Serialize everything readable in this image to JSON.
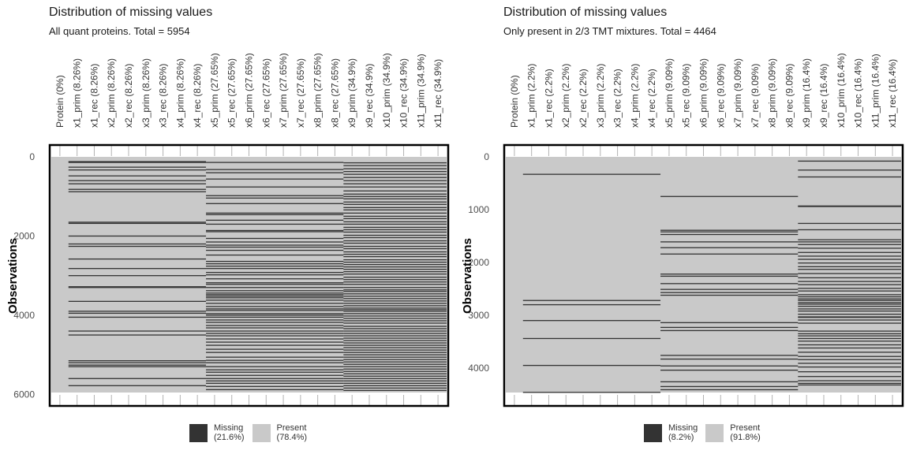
{
  "colors": {
    "missing": "#333333",
    "present": "#c9c9c9",
    "tick_text": "#4d4d4d",
    "frame": "#000000"
  },
  "legend": {
    "missing_label": "Missing",
    "present_label": "Present"
  },
  "chart_data": [
    {
      "type": "heatmap",
      "title": "Distribution of missing values",
      "subtitle": "All quant proteins. Total = 5954",
      "ylabel": "Observations",
      "ylim": [
        0,
        5954
      ],
      "yticks": [
        0,
        2000,
        4000,
        6000
      ],
      "columns": [
        "Protein (0%)",
        "x1_prim (8.26%)",
        "x1_rec (8.26%)",
        "x2_prim (8.26%)",
        "x2_rec (8.26%)",
        "x3_prim (8.26%)",
        "x3_rec (8.26%)",
        "x4_prim (8.26%)",
        "x4_rec (8.26%)",
        "x5_prim (27.65%)",
        "x5_rec (27.65%)",
        "x6_prim (27.65%)",
        "x6_rec (27.65%)",
        "x7_prim (27.65%)",
        "x7_rec (27.65%)",
        "x8_prim (27.65%)",
        "x8_rec (27.65%)",
        "x9_prim (34.9%)",
        "x9_rec (34.9%)",
        "x10_prim (34.9%)",
        "x10_rec (34.9%)",
        "x11_prim (34.9%)",
        "x11_rec (34.9%)"
      ],
      "missing_pct": [
        0,
        8.26,
        8.26,
        8.26,
        8.26,
        8.26,
        8.26,
        8.26,
        8.26,
        27.65,
        27.65,
        27.65,
        27.65,
        27.65,
        27.65,
        27.65,
        27.65,
        34.9,
        34.9,
        34.9,
        34.9,
        34.9,
        34.9
      ],
      "legend_missing_pct": "(21.6%)",
      "legend_present_pct": "(78.4%)",
      "groups": [
        {
          "columns": [
            1,
            8
          ],
          "missing_rows": [
            120,
            140,
            260,
            330,
            480,
            600,
            680,
            820,
            880,
            1650,
            1680,
            2000,
            2200,
            2260,
            2580,
            2820,
            3000,
            3280,
            3300,
            3650,
            3900,
            3950,
            4050,
            4400,
            4500,
            5150,
            5200,
            5260,
            5300,
            5600,
            5780
          ]
        },
        {
          "columns": [
            9,
            16
          ],
          "missing_rows": [
            140,
            320,
            400,
            560,
            760,
            980,
            1040,
            1180,
            1420,
            1460,
            1600,
            1700,
            1860,
            1890,
            2060,
            2150,
            2230,
            2280,
            2360,
            2480,
            2640,
            2700,
            2760,
            2820,
            2920,
            2980,
            3080,
            3180,
            3220,
            3300,
            3380,
            3440,
            3480,
            3520,
            3560,
            3620,
            3700,
            3780,
            3840,
            3880,
            3960,
            4000,
            4050,
            4120,
            4180,
            4260,
            4320,
            4400,
            4460,
            4520,
            4600,
            4680,
            4760,
            4860,
            4940,
            5060,
            5140,
            5200,
            5300,
            5380,
            5440,
            5520,
            5600,
            5660,
            5720,
            5800,
            5880
          ]
        },
        {
          "columns": [
            17,
            22
          ],
          "missing_rows": [
            150,
            220,
            300,
            370,
            440,
            520,
            600,
            680,
            760,
            860,
            940,
            1000,
            1060,
            1140,
            1200,
            1280,
            1340,
            1420,
            1500,
            1560,
            1640,
            1700,
            1780,
            1840,
            1900,
            1980,
            2040,
            2120,
            2180,
            2260,
            2320,
            2400,
            2460,
            2520,
            2600,
            2660,
            2720,
            2780,
            2840,
            2900,
            2960,
            3040,
            3100,
            3160,
            3220,
            3300,
            3360,
            3400,
            3460,
            3520,
            3580,
            3640,
            3700,
            3760,
            3820,
            3860,
            3900,
            3960,
            4020,
            4080,
            4140,
            4200,
            4280,
            4340,
            4400,
            4460,
            4520,
            4580,
            4640,
            4700,
            4760,
            4820,
            4880,
            4940,
            5000,
            5060,
            5120,
            5180,
            5240,
            5300,
            5360,
            5420,
            5480,
            5540,
            5600,
            5660,
            5720,
            5780,
            5840,
            5900
          ]
        }
      ]
    },
    {
      "type": "heatmap",
      "title": "Distribution of missing values",
      "subtitle": "Only present in 2/3 TMT mixtures. Total = 4464",
      "ylabel": "Observations",
      "ylim": [
        0,
        4464
      ],
      "yticks": [
        0,
        1000,
        2000,
        3000,
        4000
      ],
      "columns": [
        "Protein (0%)",
        "x1_prim (2.2%)",
        "x1_rec (2.2%)",
        "x2_prim (2.2%)",
        "x2_rec (2.2%)",
        "x3_prim (2.2%)",
        "x3_rec (2.2%)",
        "x4_prim (2.2%)",
        "x4_rec (2.2%)",
        "x5_prim (9.09%)",
        "x5_rec (9.09%)",
        "x6_prim (9.09%)",
        "x6_rec (9.09%)",
        "x7_prim (9.09%)",
        "x7_rec (9.09%)",
        "x8_prim (9.09%)",
        "x8_rec (9.09%)",
        "x9_prim (16.4%)",
        "x9_rec (16.4%)",
        "x10_prim (16.4%)",
        "x10_rec (16.4%)",
        "x11_prim (16.4%)",
        "x11_rec (16.4%)"
      ],
      "missing_pct": [
        0,
        2.2,
        2.2,
        2.2,
        2.2,
        2.2,
        2.2,
        2.2,
        2.2,
        9.09,
        9.09,
        9.09,
        9.09,
        9.09,
        9.09,
        9.09,
        9.09,
        16.4,
        16.4,
        16.4,
        16.4,
        16.4,
        16.4
      ],
      "legend_missing_pct": "(8.2%)",
      "legend_present_pct": "(91.8%)",
      "groups": [
        {
          "columns": [
            1,
            8
          ],
          "missing_rows": [
            330,
            2720,
            2800,
            3100,
            3440,
            3950,
            4460
          ]
        },
        {
          "columns": [
            9,
            16
          ],
          "missing_rows": [
            750,
            1390,
            1420,
            1470,
            1610,
            1720,
            1840,
            2220,
            2260,
            2400,
            2510,
            2570,
            2620,
            3140,
            3230,
            3290,
            3760,
            3830,
            3960,
            4040,
            4260,
            4350,
            4410
          ]
        },
        {
          "columns": [
            17,
            22
          ],
          "missing_rows": [
            80,
            250,
            380,
            930,
            940,
            1260,
            1380,
            1570,
            1610,
            1660,
            1730,
            1810,
            1880,
            1940,
            2010,
            2080,
            2130,
            2210,
            2290,
            2360,
            2420,
            2490,
            2540,
            2610,
            2650,
            2690,
            2720,
            2760,
            2790,
            2830,
            2880,
            2920,
            2980,
            3030,
            3040,
            3090,
            3150,
            3300,
            3350,
            3390,
            3440,
            3490,
            3560,
            3620,
            3700,
            3780,
            3840,
            3910,
            3980,
            4070,
            4160,
            4240,
            4290,
            4320
          ]
        }
      ]
    }
  ]
}
